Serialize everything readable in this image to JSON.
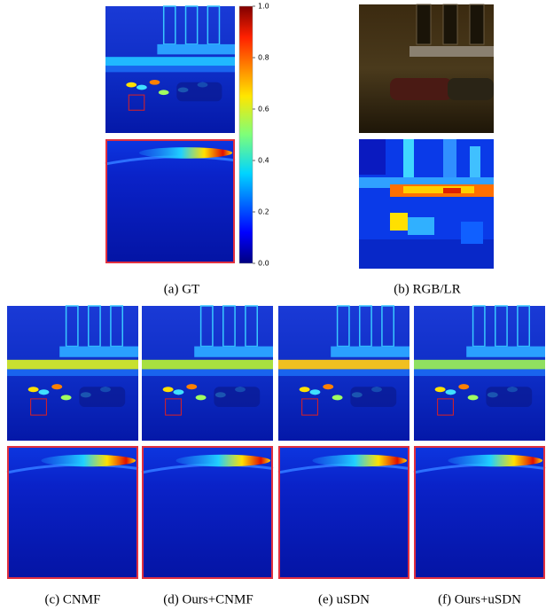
{
  "colorbar": {
    "lim": [
      0,
      1
    ],
    "ticks": [
      {
        "value": 0,
        "label": "0.0"
      },
      {
        "value": 0.2,
        "label": "0.2"
      },
      {
        "value": 0.4,
        "label": "0.4"
      },
      {
        "value": 0.6,
        "label": "0.6"
      },
      {
        "value": 0.8,
        "label": "0.8"
      },
      {
        "value": 1,
        "label": "1.0"
      }
    ]
  },
  "panels": [
    {
      "caption": "(a) GT"
    },
    {
      "caption": "(b) RGB/LR"
    },
    {
      "caption": "(c) CNMF"
    },
    {
      "caption": "(d) Ours+CNMF"
    },
    {
      "caption": "(e) uSDN"
    },
    {
      "caption": "(f) Ours+uSDN"
    }
  ]
}
